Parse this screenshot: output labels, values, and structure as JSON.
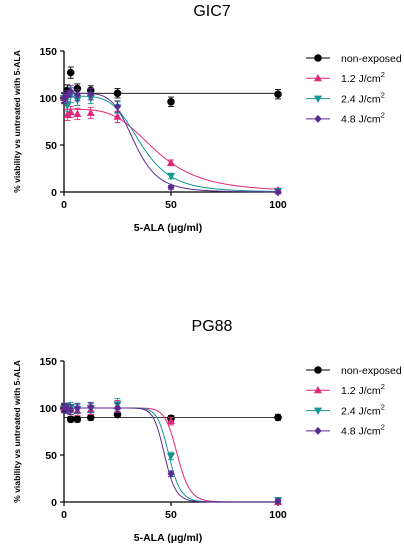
{
  "chart_data": [
    {
      "type": "scatter",
      "title": "GIC7",
      "xlabel": "5-ALA  (μg/ml)",
      "ylabel": "% viability vs untreated with 5-ALA",
      "xlim": [
        0,
        100
      ],
      "ylim": [
        0,
        150
      ],
      "xticks": [
        "0",
        "50",
        "100"
      ],
      "yticks": [
        "0",
        "50",
        "100",
        "150"
      ],
      "legend_position": "right",
      "grid": false,
      "series": [
        {
          "name": "non-exposed",
          "color": "#000000",
          "marker": "circle",
          "x": [
            0,
            1.56,
            3.13,
            6.25,
            12.5,
            25,
            50,
            100
          ],
          "y": [
            100,
            108,
            127,
            110,
            108,
            105,
            96,
            104
          ],
          "err": [
            5,
            6,
            6,
            5,
            5,
            5,
            5,
            5
          ],
          "curve": {
            "kind": "flat",
            "level": 105
          }
        },
        {
          "name": "1.2 J/cm",
          "unit_superscript": "2",
          "color": "#e0287c",
          "marker": "triangle-up",
          "x": [
            0,
            1.56,
            3.13,
            6.25,
            12.5,
            25,
            50,
            100
          ],
          "y": [
            100,
            82,
            85,
            83,
            84,
            80,
            31,
            2
          ],
          "err": [
            6,
            6,
            6,
            6,
            6,
            6,
            3,
            2
          ],
          "curve": {
            "kind": "sigmoid",
            "top": 88,
            "bottom": 0,
            "ec50": 43,
            "hill": 4
          }
        },
        {
          "name": "2.4 J/cm",
          "unit_superscript": "2",
          "color": "#12968f",
          "marker": "triangle-down",
          "x": [
            0,
            1.56,
            3.13,
            6.25,
            12.5,
            25,
            50,
            100
          ],
          "y": [
            100,
            92,
            103,
            98,
            100,
            90,
            17,
            1
          ],
          "err": [
            6,
            6,
            8,
            6,
            6,
            6,
            3,
            2
          ],
          "curve": {
            "kind": "sigmoid",
            "top": 102,
            "bottom": 0,
            "ec50": 36,
            "hill": 5
          }
        },
        {
          "name": "4.8 J/cm",
          "unit_superscript": "2",
          "color": "#5b2a92",
          "marker": "diamond",
          "x": [
            0,
            1.56,
            3.13,
            6.25,
            12.5,
            25,
            50,
            100
          ],
          "y": [
            100,
            102,
            107,
            103,
            104,
            91,
            5,
            0
          ],
          "err": [
            6,
            6,
            6,
            6,
            6,
            6,
            2,
            2
          ],
          "curve": {
            "kind": "sigmoid",
            "top": 105,
            "bottom": 0,
            "ec50": 33,
            "hill": 6
          }
        }
      ]
    },
    {
      "type": "scatter",
      "title": "PG88",
      "xlabel": "5-ALA  (μg/ml)",
      "ylabel": "% viability vs untreated with 5-ALA",
      "xlim": [
        0,
        100
      ],
      "ylim": [
        0,
        150
      ],
      "xticks": [
        "0",
        "50",
        "100"
      ],
      "yticks": [
        "0",
        "50",
        "100",
        "150"
      ],
      "legend_position": "right",
      "grid": false,
      "series": [
        {
          "name": "non-exposed",
          "color": "#000000",
          "marker": "circle",
          "x": [
            0,
            1.56,
            3.13,
            6.25,
            12.5,
            25,
            50,
            100
          ],
          "y": [
            100,
            100,
            88,
            88,
            90,
            93,
            89,
            90
          ],
          "err": [
            4,
            4,
            3,
            3,
            3,
            3,
            3,
            3
          ],
          "curve": {
            "kind": "flat",
            "level": 90
          }
        },
        {
          "name": "1.2 J/cm",
          "unit_superscript": "2",
          "color": "#e0287c",
          "marker": "triangle-up",
          "x": [
            0,
            1.56,
            3.13,
            6.25,
            12.5,
            25,
            50,
            100
          ],
          "y": [
            100,
            100,
            98,
            97,
            98,
            102,
            86,
            0
          ],
          "err": [
            5,
            5,
            5,
            5,
            5,
            6,
            4,
            2
          ],
          "curve": {
            "kind": "sigmoid",
            "top": 100,
            "bottom": 0,
            "ec50": 53,
            "hill": 18
          }
        },
        {
          "name": "2.4 J/cm",
          "unit_superscript": "2",
          "color": "#12968f",
          "marker": "triangle-down",
          "x": [
            0,
            1.56,
            3.13,
            6.25,
            12.5,
            25,
            50,
            100
          ],
          "y": [
            100,
            100,
            101,
            99,
            100,
            104,
            49,
            2
          ],
          "err": [
            5,
            5,
            5,
            5,
            5,
            6,
            4,
            2
          ],
          "curve": {
            "kind": "sigmoid",
            "top": 100,
            "bottom": 0,
            "ec50": 49,
            "hill": 18
          }
        },
        {
          "name": "4.8 J/cm",
          "unit_superscript": "2",
          "color": "#5b2a92",
          "marker": "diamond",
          "x": [
            0,
            1.56,
            3.13,
            6.25,
            12.5,
            25,
            50,
            100
          ],
          "y": [
            100,
            99,
            98,
            100,
            101,
            100,
            30,
            1
          ],
          "err": [
            5,
            5,
            5,
            5,
            5,
            5,
            3,
            2
          ],
          "curve": {
            "kind": "sigmoid",
            "top": 100,
            "bottom": 0,
            "ec50": 47,
            "hill": 18
          }
        }
      ]
    }
  ]
}
